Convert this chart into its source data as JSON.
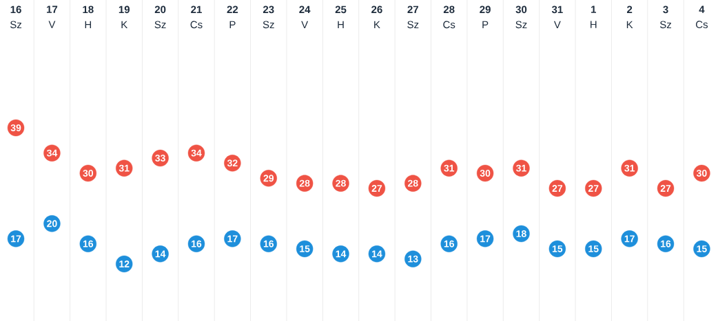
{
  "chart_data": {
    "type": "scatter",
    "categories": [
      "**16** Sz",
      "**17** V",
      "**18** H",
      "**19** K",
      "**20** Sz",
      "**21** Cs",
      "**22** P",
      "**23** Sz",
      "**24** V",
      "**25** H",
      "**26** K",
      "**27** Sz",
      "**28** Cs",
      "**29** P",
      "**30** Sz",
      "**31** V",
      "**1** H",
      "**2** K",
      "**3** Sz",
      "**4** Cs"
    ],
    "series": [
      {
        "color": "#ef5345",
        "values": [
          39,
          34,
          30,
          31,
          33,
          34,
          32,
          29,
          28,
          28,
          27,
          28,
          31,
          30,
          31,
          27,
          27,
          31,
          27,
          30
        ]
      },
      {
        "color": "#1e8fdb",
        "values": [
          17,
          20,
          16,
          12,
          14,
          16,
          17,
          16,
          15,
          14,
          14,
          13,
          16,
          17,
          18,
          15,
          15,
          17,
          16,
          15
        ]
      }
    ],
    "data_labels": true,
    "marker": "circle",
    "grid": "x",
    "tick_labels": "x"
  }
}
